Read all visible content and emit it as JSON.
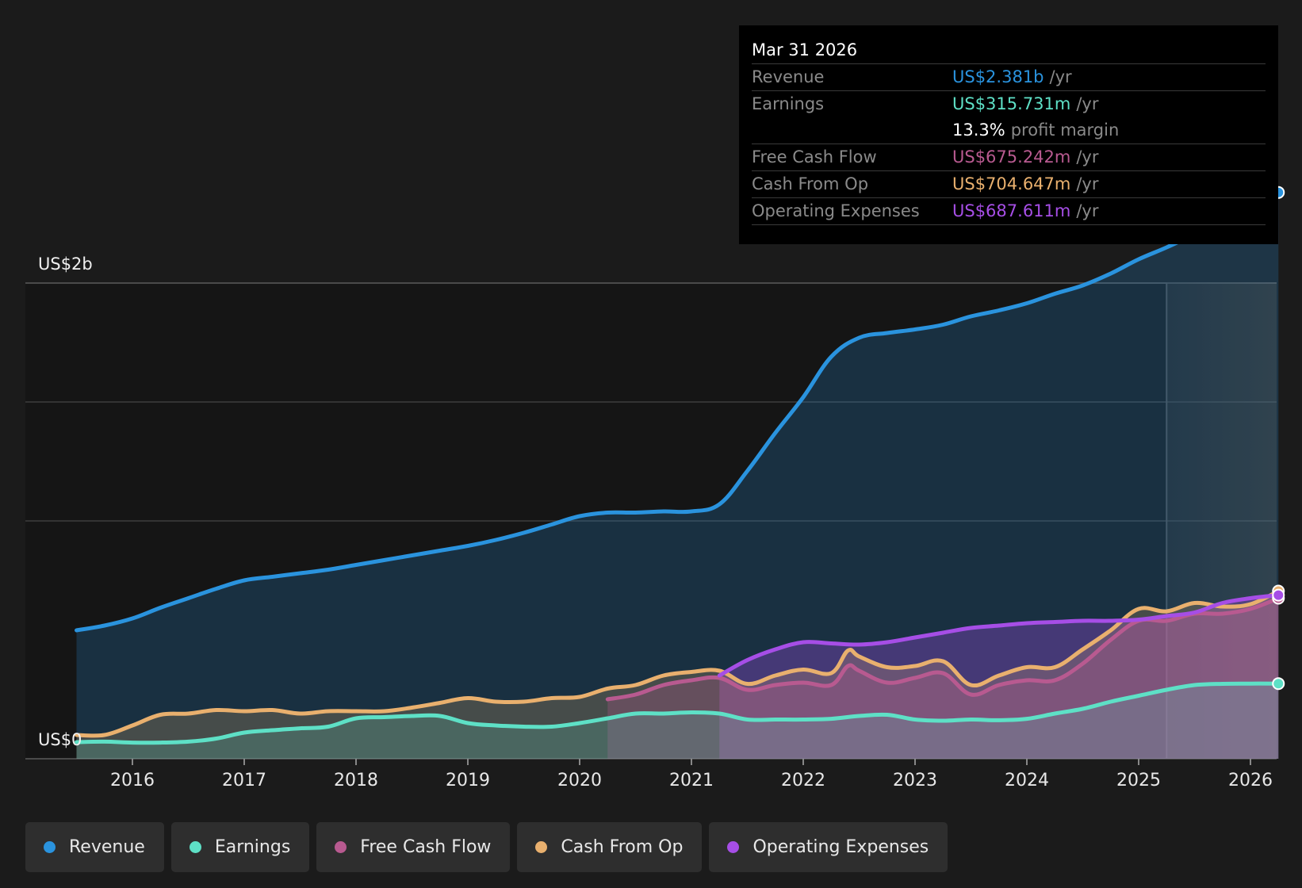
{
  "colors": {
    "revenue": "#2a93de",
    "earnings": "#5ee0c6",
    "fcf": "#b85a90",
    "cfo": "#e9b06e",
    "opex": "#a64ee6",
    "grid": "#3a3a3a",
    "background": "#1b1b1b"
  },
  "legend": {
    "items": [
      {
        "label": "Revenue",
        "color": "#2a93de"
      },
      {
        "label": "Earnings",
        "color": "#5ee0c6"
      },
      {
        "label": "Free Cash Flow",
        "color": "#b85a90"
      },
      {
        "label": "Cash From Op",
        "color": "#e9b06e"
      },
      {
        "label": "Operating Expenses",
        "color": "#a64ee6"
      }
    ]
  },
  "tooltip": {
    "date": "Mar 31 2026",
    "unit": "/yr",
    "rows": [
      {
        "name": "Revenue",
        "value": "US$2.381b",
        "color": "#2a93de"
      },
      {
        "name": "Earnings",
        "value": "US$315.731m",
        "color": "#5ee0c6"
      },
      {
        "name": "",
        "value": "13.3%",
        "extra": "profit margin",
        "color": "#ffffff"
      },
      {
        "name": "Free Cash Flow",
        "value": "US$675.242m",
        "color": "#b85a90"
      },
      {
        "name": "Cash From Op",
        "value": "US$704.647m",
        "color": "#e9b06e"
      },
      {
        "name": "Operating Expenses",
        "value": "US$687.611m",
        "color": "#a64ee6"
      }
    ]
  },
  "chart_data": {
    "type": "area",
    "x_ticks": [
      "2016",
      "2017",
      "2018",
      "2019",
      "2020",
      "2021",
      "2022",
      "2023",
      "2024",
      "2025",
      "2026"
    ],
    "y_labels": {
      "top": "US$2b",
      "bottom": "US$0"
    },
    "ylim": [
      0,
      2.4
    ],
    "xlim": [
      2015.5,
      2026.25
    ],
    "forecast_start": 2025.25,
    "series": [
      {
        "name": "Revenue",
        "color": "#2a93de",
        "x": [
          2015.5,
          2015.75,
          2016.0,
          2016.25,
          2016.5,
          2016.75,
          2017.0,
          2017.25,
          2017.5,
          2017.75,
          2018.0,
          2018.25,
          2018.5,
          2018.75,
          2019.0,
          2019.25,
          2019.5,
          2019.75,
          2020.0,
          2020.25,
          2020.5,
          2020.75,
          2021.0,
          2021.25,
          2021.5,
          2021.75,
          2022.0,
          2022.25,
          2022.5,
          2022.75,
          2023.0,
          2023.25,
          2023.5,
          2023.75,
          2024.0,
          2024.25,
          2024.5,
          2024.75,
          2025.0,
          2025.25,
          2025.5,
          2025.75,
          2026.0,
          2026.25
        ],
        "values": [
          0.54,
          0.56,
          0.59,
          0.635,
          0.675,
          0.715,
          0.75,
          0.765,
          0.78,
          0.795,
          0.815,
          0.835,
          0.855,
          0.875,
          0.895,
          0.92,
          0.95,
          0.985,
          1.02,
          1.035,
          1.035,
          1.04,
          1.04,
          1.07,
          1.21,
          1.37,
          1.52,
          1.69,
          1.77,
          1.79,
          1.805,
          1.825,
          1.86,
          1.885,
          1.915,
          1.955,
          1.99,
          2.04,
          2.1,
          2.15,
          2.205,
          2.26,
          2.3,
          2.381
        ]
      },
      {
        "name": "Earnings",
        "color": "#5ee0c6",
        "x": [
          2015.5,
          2015.75,
          2016.0,
          2016.25,
          2016.5,
          2016.75,
          2017.0,
          2017.25,
          2017.5,
          2017.75,
          2018.0,
          2018.25,
          2018.5,
          2018.75,
          2019.0,
          2019.25,
          2019.5,
          2019.75,
          2020.0,
          2020.25,
          2020.5,
          2020.75,
          2021.0,
          2021.25,
          2021.5,
          2021.75,
          2022.0,
          2022.25,
          2022.5,
          2022.75,
          2023.0,
          2023.25,
          2023.5,
          2023.75,
          2024.0,
          2024.25,
          2024.5,
          2024.75,
          2025.0,
          2025.25,
          2025.5,
          2025.75,
          2026.0,
          2026.25
        ],
        "values": [
          0.07,
          0.072,
          0.068,
          0.068,
          0.072,
          0.085,
          0.11,
          0.12,
          0.128,
          0.135,
          0.17,
          0.175,
          0.18,
          0.18,
          0.15,
          0.14,
          0.135,
          0.135,
          0.15,
          0.17,
          0.19,
          0.19,
          0.195,
          0.19,
          0.165,
          0.165,
          0.165,
          0.168,
          0.18,
          0.185,
          0.165,
          0.16,
          0.165,
          0.162,
          0.168,
          0.19,
          0.21,
          0.24,
          0.265,
          0.29,
          0.31,
          0.315,
          0.316,
          0.316
        ]
      },
      {
        "name": "Free Cash Flow",
        "color": "#b85a90",
        "x": [
          2020.25,
          2020.5,
          2020.75,
          2021.0,
          2021.25,
          2021.5,
          2021.75,
          2022.0,
          2022.25,
          2022.4,
          2022.5,
          2022.75,
          2023.0,
          2023.25,
          2023.5,
          2023.75,
          2024.0,
          2024.25,
          2024.5,
          2024.75,
          2025.0,
          2025.25,
          2025.5,
          2025.75,
          2026.0,
          2026.25
        ],
        "values": [
          0.25,
          0.27,
          0.31,
          0.33,
          0.34,
          0.29,
          0.31,
          0.32,
          0.31,
          0.39,
          0.37,
          0.32,
          0.34,
          0.36,
          0.27,
          0.31,
          0.33,
          0.33,
          0.4,
          0.5,
          0.58,
          0.58,
          0.61,
          0.61,
          0.63,
          0.675
        ]
      },
      {
        "name": "Cash From Op",
        "color": "#e9b06e",
        "x": [
          2015.5,
          2015.75,
          2016.0,
          2016.25,
          2016.5,
          2016.75,
          2017.0,
          2017.25,
          2017.5,
          2017.75,
          2018.0,
          2018.25,
          2018.5,
          2018.75,
          2019.0,
          2019.25,
          2019.5,
          2019.75,
          2020.0,
          2020.25,
          2020.5,
          2020.75,
          2021.0,
          2021.25,
          2021.5,
          2021.75,
          2022.0,
          2022.25,
          2022.4,
          2022.5,
          2022.75,
          2023.0,
          2023.25,
          2023.5,
          2023.75,
          2024.0,
          2024.25,
          2024.5,
          2024.75,
          2025.0,
          2025.25,
          2025.5,
          2025.75,
          2026.0,
          2026.25
        ],
        "values": [
          0.1,
          0.1,
          0.14,
          0.185,
          0.19,
          0.205,
          0.2,
          0.205,
          0.19,
          0.2,
          0.2,
          0.2,
          0.215,
          0.235,
          0.255,
          0.24,
          0.24,
          0.255,
          0.26,
          0.295,
          0.31,
          0.35,
          0.365,
          0.37,
          0.315,
          0.35,
          0.375,
          0.36,
          0.455,
          0.43,
          0.385,
          0.39,
          0.41,
          0.31,
          0.35,
          0.385,
          0.385,
          0.46,
          0.54,
          0.63,
          0.62,
          0.655,
          0.64,
          0.65,
          0.705
        ]
      },
      {
        "name": "Operating Expenses",
        "color": "#a64ee6",
        "x": [
          2021.25,
          2021.5,
          2021.75,
          2022.0,
          2022.25,
          2022.5,
          2022.75,
          2023.0,
          2023.25,
          2023.5,
          2023.75,
          2024.0,
          2024.25,
          2024.5,
          2024.75,
          2025.0,
          2025.25,
          2025.5,
          2025.75,
          2026.0,
          2026.25
        ],
        "values": [
          0.35,
          0.415,
          0.46,
          0.49,
          0.485,
          0.48,
          0.49,
          0.51,
          0.53,
          0.55,
          0.56,
          0.57,
          0.575,
          0.58,
          0.58,
          0.585,
          0.6,
          0.615,
          0.655,
          0.675,
          0.688
        ]
      }
    ]
  }
}
